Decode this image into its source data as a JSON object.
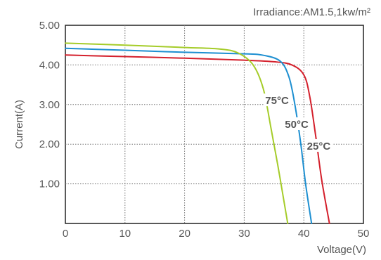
{
  "chart_data": {
    "type": "line",
    "title": "",
    "xlabel": "Voltage(V)",
    "ylabel": "Current(A)",
    "annotation": "Irradiance:AM1.5,1kw/m²",
    "xlim": [
      0,
      50
    ],
    "ylim": [
      0,
      5
    ],
    "x_ticks": [
      "0",
      "10",
      "20",
      "30",
      "40",
      "50"
    ],
    "y_ticks": [
      "1.00",
      "2.00",
      "3.00",
      "4.00",
      "5.00"
    ],
    "grid": true,
    "grid_style": "dotted",
    "legend": "inline-labels",
    "series": [
      {
        "name": "25°C",
        "color": "#d4202c",
        "x": [
          0,
          10,
          20,
          30,
          35,
          38,
          40,
          41,
          42,
          43,
          44.3
        ],
        "y": [
          4.25,
          4.21,
          4.17,
          4.12,
          4.08,
          4.0,
          3.75,
          3.2,
          2.2,
          1.1,
          0
        ]
      },
      {
        "name": "50°C",
        "color": "#1d8fd1",
        "x": [
          0,
          10,
          20,
          30,
          33,
          36,
          37.5,
          38.5,
          39.5,
          40.3,
          41.3
        ],
        "y": [
          4.42,
          4.37,
          4.32,
          4.28,
          4.25,
          4.1,
          3.7,
          3.0,
          2.0,
          1.0,
          0
        ]
      },
      {
        "name": "75°C",
        "color": "#a5cc29",
        "x": [
          0,
          10,
          20,
          26,
          29,
          31.5,
          33.2,
          34.5,
          35.6,
          36.4,
          37.3
        ],
        "y": [
          4.55,
          4.5,
          4.44,
          4.4,
          4.3,
          4.0,
          3.4,
          2.4,
          1.5,
          0.8,
          0
        ]
      }
    ],
    "series_labels": [
      {
        "text": "75°C",
        "x": 35.5,
        "y": 3.1
      },
      {
        "text": "50°C",
        "x": 38.8,
        "y": 2.5
      },
      {
        "text": "25°C",
        "x": 42.5,
        "y": 1.95
      }
    ]
  }
}
